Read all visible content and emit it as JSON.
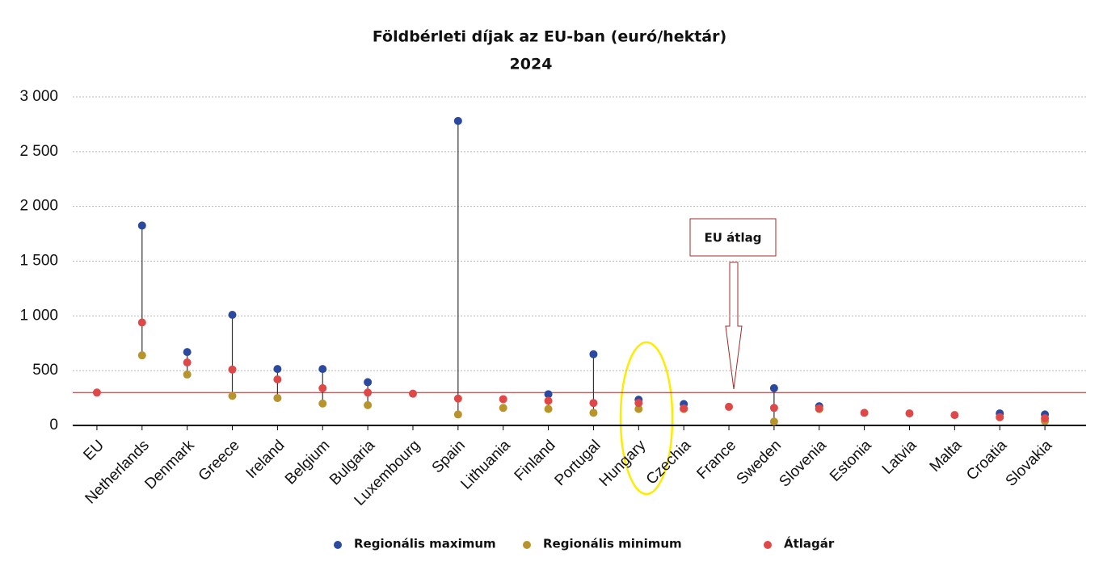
{
  "chart_data": {
    "type": "dot-range",
    "title": "Földbérleti díjak az EU-ban (euró/hektár)",
    "subtitle": "2024",
    "categories": [
      "EU",
      "Netherlands",
      "Denmark",
      "Greece",
      "Ireland",
      "Belgium",
      "Bulgaria",
      "Luxembourg",
      "Spain",
      "Lithuania",
      "Finland",
      "Portugal",
      "Hungary",
      "Czechia",
      "France",
      "Sweden",
      "Slovenia",
      "Estonia",
      "Latvia",
      "Malta",
      "Croatia",
      "Slovakia"
    ],
    "series": [
      {
        "name": "Regionális maximum",
        "color": "#2b4a9f",
        "values": [
          null,
          1825,
          670,
          1010,
          515,
          515,
          395,
          null,
          2780,
          null,
          285,
          650,
          235,
          195,
          null,
          340,
          175,
          null,
          null,
          null,
          110,
          100
        ]
      },
      {
        "name": "Regionális minimum",
        "color": "#b8952c",
        "values": [
          null,
          640,
          465,
          270,
          250,
          200,
          185,
          null,
          100,
          160,
          150,
          115,
          150,
          150,
          null,
          35,
          150,
          null,
          null,
          null,
          null,
          40
        ]
      },
      {
        "name": "Átlagár",
        "color": "#e04848",
        "values": [
          300,
          940,
          575,
          510,
          420,
          340,
          300,
          290,
          245,
          240,
          225,
          205,
          205,
          155,
          170,
          160,
          155,
          115,
          110,
          95,
          75,
          65
        ]
      }
    ],
    "ylim": [
      0,
      3000
    ],
    "yticks": [
      0,
      500,
      {
        "value": 1000,
        "label": "1 000"
      },
      {
        "value": 1500,
        "label": "1 500"
      },
      {
        "value": 2000,
        "label": "2 000"
      },
      {
        "value": 2500,
        "label": "2 500"
      },
      {
        "value": 3000,
        "label": "3 000"
      }
    ],
    "grid": true,
    "annotation": "EU átlag",
    "legend": "bottom"
  }
}
